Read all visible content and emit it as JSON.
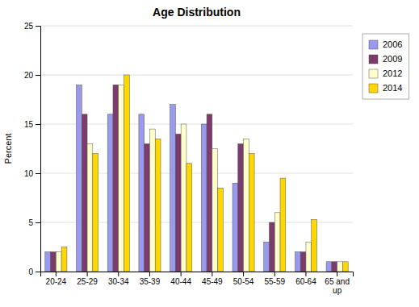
{
  "chart_data": {
    "type": "bar",
    "title": "Age Distribution",
    "ylabel": "Percent",
    "categories": [
      "20-24",
      "25-29",
      "30-34",
      "35-39",
      "40-44",
      "45-49",
      "50-54",
      "55-59",
      "60-64",
      "65 and\nup"
    ],
    "series": [
      {
        "name": "2006",
        "color": "#9999EE",
        "values": [
          2,
          19,
          16,
          16,
          17,
          15,
          9,
          3,
          2,
          1
        ]
      },
      {
        "name": "2009",
        "color": "#7B3B6B",
        "values": [
          2,
          16,
          19,
          13,
          14,
          16,
          13,
          5,
          2,
          1
        ]
      },
      {
        "name": "2012",
        "color": "#FFFFCC",
        "values": [
          2,
          13,
          19,
          14.5,
          15,
          12.5,
          13.5,
          6,
          3,
          1
        ]
      },
      {
        "name": "2014",
        "color": "#FFD700",
        "values": [
          2.5,
          12,
          20,
          13.5,
          11,
          8.5,
          12,
          9.5,
          5.3,
          1
        ]
      }
    ],
    "ylim": [
      0,
      25
    ],
    "yticks": [
      0,
      5,
      10,
      15,
      20,
      25
    ],
    "grid": true,
    "legend": "right"
  }
}
